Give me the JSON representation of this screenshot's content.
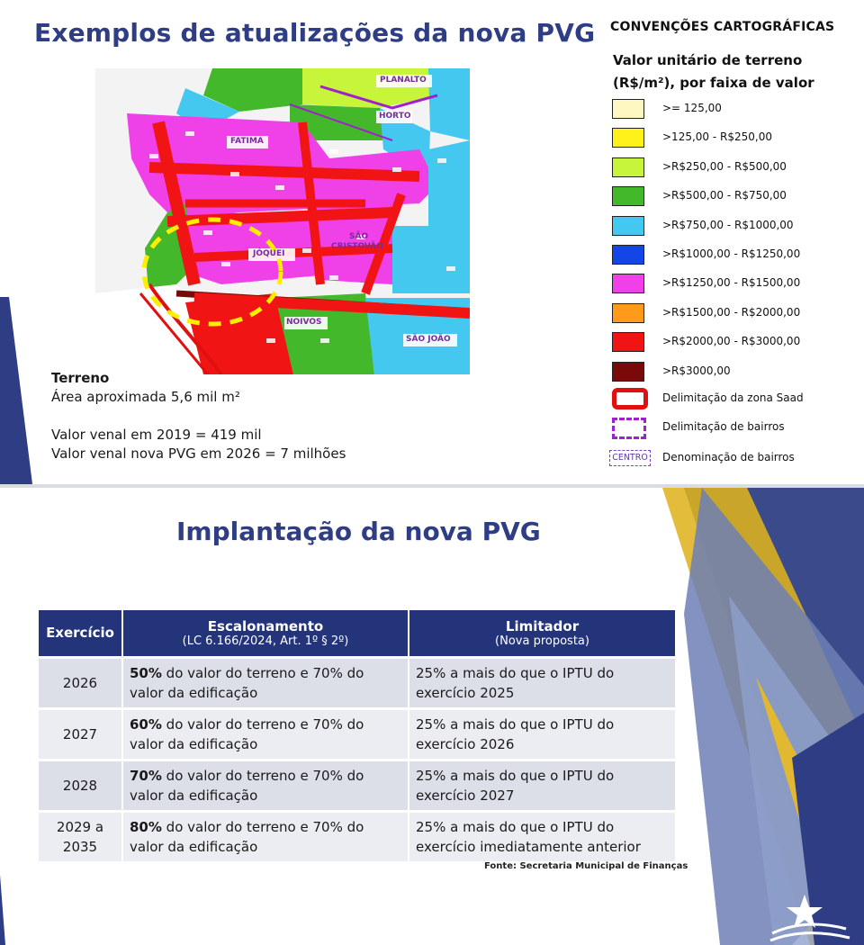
{
  "slide1": {
    "title": "Exemplos de atualizações da nova PVG",
    "map_labels": {
      "planalto": "PLANALTO",
      "horto": "HORTO",
      "fatima": "FATIMA",
      "sao_cristovao_1": "SÃO",
      "sao_cristovao_2": "CRISTOVÃO",
      "joquei": "JÓQUEI",
      "noivos": "NOIVOS",
      "sao_joao": "SÃO JOÃO"
    },
    "info": {
      "heading": "Terreno",
      "area": "Área aproximada 5,6 mil m²",
      "valor_2019": "Valor venal em 2019 = 419 mil",
      "valor_2026": "Valor venal nova PVG em 2026 = 7 milhões"
    },
    "legend": {
      "title": "CONVENÇÕES CARTOGRÁFICAS",
      "subtitle_line1": "Valor unitário de terreno",
      "subtitle_line2": "(R$/m²), por faixa de valor",
      "items": [
        {
          "label": ">= 125,00",
          "color": "#fff7c2"
        },
        {
          "label": ">125,00 - R$250,00",
          "color": "#fff21a"
        },
        {
          "label": ">R$250,00 - R$500,00",
          "color": "#c6f53a"
        },
        {
          "label": ">R$500,00 - R$750,00",
          "color": "#43b82a"
        },
        {
          "label": ">R$750,00 - R$1000,00",
          "color": "#44c8f0"
        },
        {
          "label": ">R$1000,00 - R$1250,00",
          "color": "#1446e6"
        },
        {
          "label": ">R$1250,00 - R$1500,00",
          "color": "#f040e8"
        },
        {
          "label": ">R$1500,00 - R$2000,00",
          "color": "#ff9a1a"
        },
        {
          "label": ">R$2000,00 - R$3000,00",
          "color": "#f01414"
        },
        {
          "label": ">R$3000,00",
          "color": "#7a0a0a"
        }
      ],
      "zone_label": "Delimitação da zona Saad",
      "bairro_label": "Delimitação de bairros",
      "centro_tag": "CENTRO",
      "denominacao_label": "Denominação de bairros"
    }
  },
  "slide2": {
    "title": "Implantação da nova PVG",
    "table": {
      "headers": {
        "exercicio": "Exercício",
        "escalonamento": "Escalonamento",
        "escalonamento_sub": "(LC 6.166/2024, Art. 1º § 2º)",
        "limitador": "Limitador",
        "limitador_sub": "(Nova proposta)"
      },
      "rows": [
        {
          "year_1": "2026",
          "year_2": "",
          "pct": "50%",
          "esc_rest": " do valor do terreno e 70% do valor da edificação",
          "limitador": "25% a mais do que o IPTU do exercício 2025"
        },
        {
          "year_1": "2027",
          "year_2": "",
          "pct": "60%",
          "esc_rest": " do valor do terreno e 70% do valor da edificação",
          "limitador": "25% a mais do que o IPTU do exercício 2026"
        },
        {
          "year_1": "2028",
          "year_2": "",
          "pct": "70%",
          "esc_rest": " do valor do terreno e 70% do valor da edificação",
          "limitador": "25% a mais do que o IPTU do exercício 2027"
        },
        {
          "year_1": "2029 a",
          "year_2": "2035",
          "pct": "80%",
          "esc_rest": " do valor do terreno e 70% do valor da edificação",
          "limitador": "25% a mais do que o IPTU do exercício imediatamente anterior"
        }
      ]
    },
    "fonte": "Fonte: Secretaria Municipal de Finanças"
  }
}
